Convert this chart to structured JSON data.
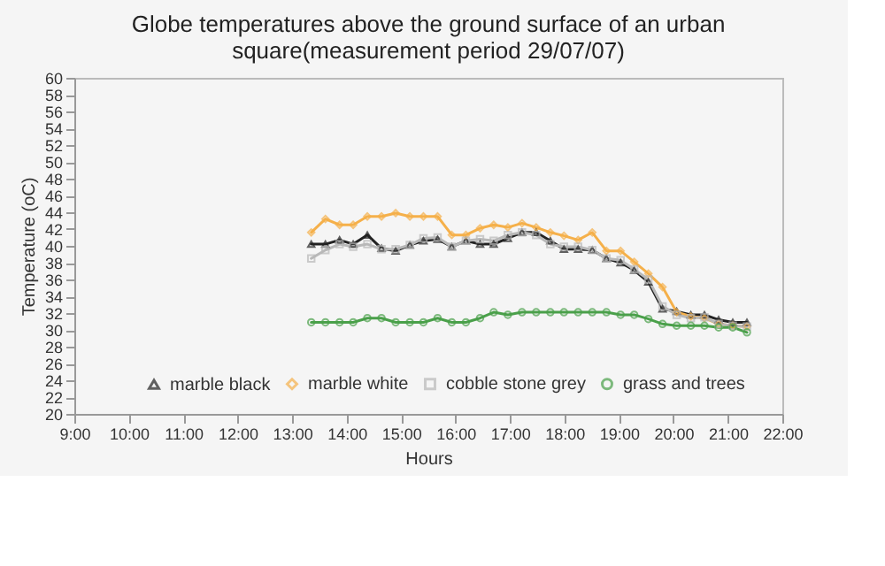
{
  "chart_data": {
    "type": "line",
    "title": "Globe temperatures above the ground surface of an urban square(measurement period 29/07/07)",
    "xlabel": "Hours",
    "ylabel": "Temperature (oC)",
    "x": [
      13.35,
      13.61,
      13.87,
      14.12,
      14.38,
      14.64,
      14.9,
      15.16,
      15.41,
      15.67,
      15.93,
      16.19,
      16.45,
      16.7,
      16.96,
      17.22,
      17.48,
      17.74,
      17.99,
      18.25,
      18.51,
      18.77,
      19.03,
      19.28,
      19.54,
      19.8,
      20.06,
      20.32,
      20.57,
      20.83,
      21.09,
      21.35
    ],
    "series": [
      {
        "name": "marble black",
        "color": "#222222",
        "marker": "triangle",
        "values": [
          40.2,
          40.2,
          40.7,
          40.2,
          41.3,
          39.7,
          39.4,
          40.1,
          40.6,
          40.8,
          39.9,
          40.6,
          40.2,
          40.2,
          40.9,
          41.6,
          41.6,
          40.6,
          39.6,
          39.6,
          39.5,
          38.5,
          38.0,
          37.1,
          35.7,
          32.5,
          32.2,
          31.8,
          31.8,
          31.2,
          30.9,
          30.9
        ]
      },
      {
        "name": "marble white",
        "color": "#f5b04a",
        "marker": "diamond",
        "values": [
          41.6,
          43.2,
          42.5,
          42.5,
          43.5,
          43.5,
          43.9,
          43.5,
          43.5,
          43.5,
          41.3,
          41.3,
          42.1,
          42.5,
          42.2,
          42.7,
          42.2,
          41.6,
          41.2,
          40.7,
          41.6,
          39.4,
          39.4,
          38.1,
          36.7,
          35.1,
          32.1,
          31.6,
          31.4,
          30.7,
          30.5,
          30.4
        ]
      },
      {
        "name": "cobble stone grey",
        "color": "#b8b8b8",
        "marker": "square",
        "values": [
          38.5,
          39.5,
          40.2,
          39.9,
          40.2,
          39.6,
          39.6,
          40.1,
          40.9,
          41.0,
          39.9,
          40.6,
          40.8,
          40.6,
          41.3,
          41.6,
          41.3,
          40.2,
          39.9,
          39.9,
          39.5,
          38.5,
          38.3,
          37.2,
          36.0,
          32.8,
          31.8,
          31.4,
          31.5,
          30.7,
          30.5,
          30.4
        ]
      },
      {
        "name": "grass and trees",
        "color": "#4aa04a",
        "marker": "circle",
        "values": [
          30.9,
          30.9,
          30.9,
          30.9,
          31.4,
          31.4,
          30.9,
          30.9,
          30.9,
          31.4,
          30.9,
          30.9,
          31.4,
          32.1,
          31.8,
          32.1,
          32.1,
          32.1,
          32.1,
          32.1,
          32.1,
          32.1,
          31.8,
          31.8,
          31.3,
          30.7,
          30.5,
          30.5,
          30.5,
          30.3,
          30.3,
          29.7
        ]
      }
    ],
    "xlim": [
      9,
      22
    ],
    "xticks": [
      {
        "value": 9,
        "label": "9:00"
      },
      {
        "value": 10,
        "label": "10:00"
      },
      {
        "value": 11,
        "label": "11:00"
      },
      {
        "value": 12,
        "label": "12:00"
      },
      {
        "value": 13,
        "label": "13:00"
      },
      {
        "value": 14,
        "label": "14:00"
      },
      {
        "value": 15,
        "label": "15:00"
      },
      {
        "value": 16,
        "label": "16:00"
      },
      {
        "value": 17,
        "label": "17:00"
      },
      {
        "value": 18,
        "label": "18:00"
      },
      {
        "value": 19,
        "label": "19:00"
      },
      {
        "value": 20,
        "label": "20:00"
      },
      {
        "value": 21,
        "label": "21:00"
      },
      {
        "value": 22,
        "label": "22:00"
      }
    ],
    "ylim": [
      20,
      60
    ],
    "yticks": [
      20,
      22,
      24,
      26,
      28,
      30,
      32,
      34,
      36,
      38,
      40,
      42,
      44,
      46,
      48,
      50,
      52,
      54,
      56,
      58,
      60
    ],
    "grid": false,
    "legend": "bottom"
  }
}
